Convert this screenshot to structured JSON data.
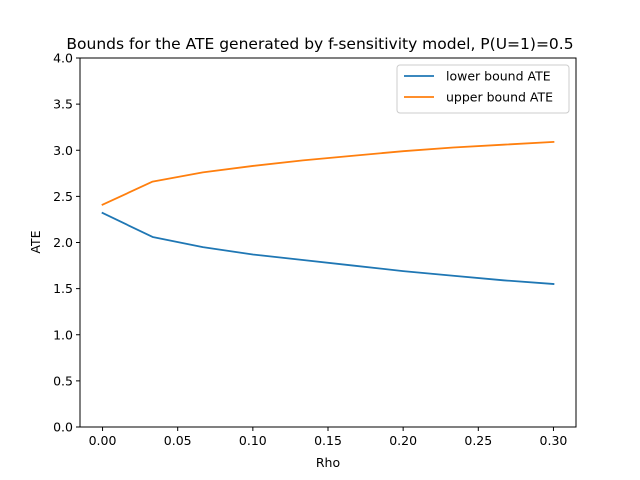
{
  "chart_data": {
    "type": "line",
    "title": "Bounds for the ATE generated by f-sensitivity model, P(U=1)=0.5",
    "xlabel": "Rho",
    "ylabel": "ATE",
    "xlim": [
      -0.015,
      0.315
    ],
    "ylim": [
      0.0,
      4.0
    ],
    "xticks": [
      0.0,
      0.05,
      0.1,
      0.15,
      0.2,
      0.25,
      0.3
    ],
    "xtick_labels": [
      "0.00",
      "0.05",
      "0.10",
      "0.15",
      "0.20",
      "0.25",
      "0.30"
    ],
    "yticks": [
      0.0,
      0.5,
      1.0,
      1.5,
      2.0,
      2.5,
      3.0,
      3.5,
      4.0
    ],
    "ytick_labels": [
      "0.0",
      "0.5",
      "1.0",
      "1.5",
      "2.0",
      "2.5",
      "3.0",
      "3.5",
      "4.0"
    ],
    "grid": false,
    "legend_position": "top-right",
    "x": [
      0.0,
      0.0333,
      0.0667,
      0.1,
      0.1333,
      0.1667,
      0.2,
      0.2333,
      0.2667,
      0.3
    ],
    "series": [
      {
        "name": "lower bound ATE",
        "color": "#1f77b4",
        "values": [
          2.32,
          2.06,
          1.95,
          1.87,
          1.81,
          1.75,
          1.69,
          1.64,
          1.59,
          1.55
        ]
      },
      {
        "name": "upper bound ATE",
        "color": "#ff7f0e",
        "values": [
          2.41,
          2.66,
          2.76,
          2.83,
          2.89,
          2.94,
          2.99,
          3.03,
          3.06,
          3.09
        ]
      }
    ]
  }
}
